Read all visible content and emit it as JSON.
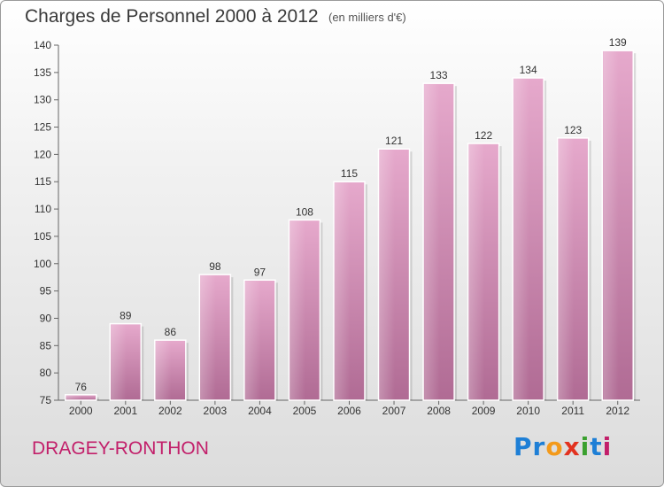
{
  "chart_data": {
    "type": "bar",
    "title": "Charges de Personnel 2000 à 2012",
    "subtitle": "(en milliers d'€)",
    "categories": [
      "2000",
      "2001",
      "2002",
      "2003",
      "2004",
      "2005",
      "2006",
      "2007",
      "2008",
      "2009",
      "2010",
      "2011",
      "2012"
    ],
    "values": [
      76,
      89,
      86,
      98,
      97,
      108,
      115,
      121,
      133,
      122,
      134,
      123,
      139
    ],
    "ylim": [
      75,
      140
    ],
    "yticks": [
      75,
      80,
      85,
      90,
      95,
      100,
      105,
      110,
      115,
      120,
      125,
      130,
      135,
      140
    ],
    "grid": false,
    "bar_color": "#d98fb8"
  },
  "footer": {
    "place": "DRAGEY-RONTHON",
    "logo": [
      "Pr",
      "o",
      "x",
      "i",
      "t",
      "i"
    ]
  }
}
